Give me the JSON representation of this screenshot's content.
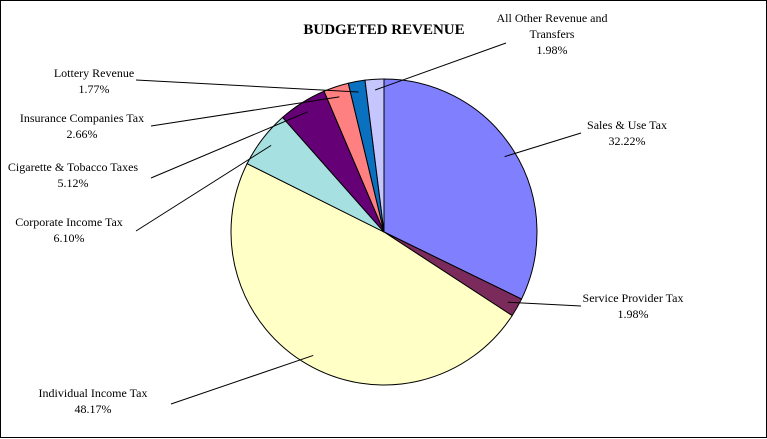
{
  "chart_data": {
    "type": "pie",
    "title": "BUDGETED REVENUE",
    "slices": [
      {
        "label_lines": [
          "Sales & Use Tax"
        ],
        "value": 32.22,
        "value_label": "32.22%",
        "color": "#8080FF"
      },
      {
        "label_lines": [
          "Service Provider Tax"
        ],
        "value": 1.98,
        "value_label": "1.98%",
        "color": "#7B2A5C"
      },
      {
        "label_lines": [
          "Individual Income Tax"
        ],
        "value": 48.17,
        "value_label": "48.17%",
        "color": "#FFFFC6"
      },
      {
        "label_lines": [
          "Corporate Income Tax"
        ],
        "value": 6.1,
        "value_label": "6.10%",
        "color": "#A6E0E0"
      },
      {
        "label_lines": [
          "Cigarette & Tobacco Taxes"
        ],
        "value": 5.12,
        "value_label": "5.12%",
        "color": "#660077"
      },
      {
        "label_lines": [
          "Insurance Companies Tax"
        ],
        "value": 2.66,
        "value_label": "2.66%",
        "color": "#FF8080"
      },
      {
        "label_lines": [
          "Lottery Revenue"
        ],
        "value": 1.77,
        "value_label": "1.77%",
        "color": "#0A70C0"
      },
      {
        "label_lines": [
          "All Other Revenue and",
          "Transfers"
        ],
        "value": 1.98,
        "value_label": "1.98%",
        "color": "#C6C6FF"
      }
    ]
  }
}
